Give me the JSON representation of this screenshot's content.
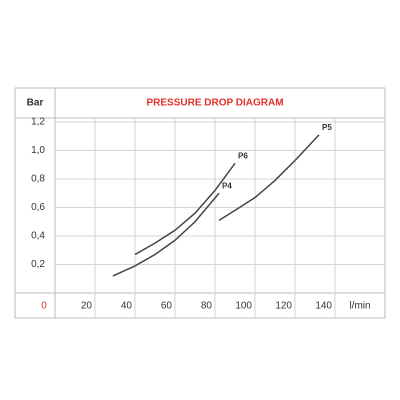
{
  "chart_data": {
    "type": "line",
    "title": "PRESSURE DROP DIAGRAM",
    "title_color": "#e0312b",
    "y_label": "Bar",
    "x_label": "l/min",
    "xlim": [
      0,
      165
    ],
    "ylim": [
      0,
      1.2
    ],
    "xticks": [
      0,
      20,
      40,
      60,
      80,
      100,
      120,
      140
    ],
    "yticks": [
      {
        "value": 0.2,
        "label": "0,2"
      },
      {
        "value": 0.4,
        "label": "0,4"
      },
      {
        "value": 0.6,
        "label": "0,6"
      },
      {
        "value": 0.8,
        "label": "0,8"
      },
      {
        "value": 1.0,
        "label": "1,0"
      },
      {
        "value": 1.2,
        "label": "1,2"
      }
    ],
    "zero_tick_color": "#e0312b",
    "grid": true,
    "series": [
      {
        "name": "P4",
        "color": "#444444",
        "x": [
          29,
          40,
          50,
          60,
          70,
          82
        ],
        "values": [
          0.12,
          0.19,
          0.27,
          0.37,
          0.5,
          0.7
        ]
      },
      {
        "name": "P6",
        "color": "#444444",
        "x": [
          40,
          50,
          60,
          70,
          80,
          90
        ],
        "values": [
          0.27,
          0.35,
          0.44,
          0.56,
          0.72,
          0.91
        ]
      },
      {
        "name": "P5",
        "color": "#444444",
        "x": [
          82,
          90,
          100,
          110,
          120,
          132
        ],
        "values": [
          0.51,
          0.58,
          0.67,
          0.79,
          0.93,
          1.11
        ]
      }
    ]
  }
}
